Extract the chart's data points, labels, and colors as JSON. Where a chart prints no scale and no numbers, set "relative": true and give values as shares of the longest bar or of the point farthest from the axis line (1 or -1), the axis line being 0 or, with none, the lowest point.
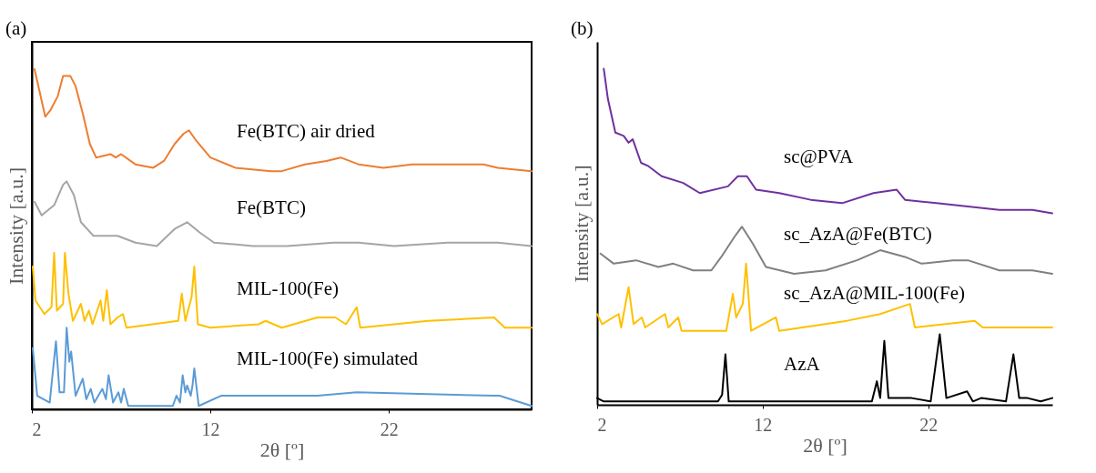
{
  "chart_data": [
    {
      "type": "line",
      "title": "(a)",
      "xlabel": "2θ [º]",
      "ylabel": "Intensity [a.u.]",
      "relative": true,
      "tick_labels": "x",
      "xlim": [
        2,
        30
      ],
      "xticks": [
        2,
        12,
        22
      ],
      "series": [
        {
          "name": "Fe(BTC) air dried",
          "color": "#ed7d31",
          "x": [
            2.15,
            2.75,
            3.05,
            3.45,
            3.75,
            4.15,
            4.45,
            4.85,
            5.25,
            5.6,
            6.4,
            6.7,
            7.0,
            7.8,
            8.8,
            9.4,
            10.0,
            10.5,
            10.8,
            11.2,
            12.0,
            13.4,
            15.4,
            16.0,
            17.3,
            18.5,
            19.3,
            20.3,
            21.7,
            23.3,
            25.3,
            27.3,
            28.1,
            30
          ],
          "values": [
            1.0,
            0.86,
            0.88,
            0.92,
            0.98,
            0.98,
            0.95,
            0.87,
            0.78,
            0.74,
            0.75,
            0.74,
            0.75,
            0.72,
            0.71,
            0.73,
            0.78,
            0.81,
            0.82,
            0.79,
            0.74,
            0.71,
            0.7,
            0.7,
            0.72,
            0.73,
            0.74,
            0.72,
            0.71,
            0.72,
            0.72,
            0.72,
            0.71,
            0.7
          ]
        },
        {
          "name": "Fe(BTC)",
          "color": "#a5a5a5",
          "x": [
            2.15,
            2.55,
            3.25,
            3.75,
            3.95,
            4.35,
            4.75,
            5.45,
            6.25,
            6.8,
            7.8,
            9.0,
            10.0,
            10.7,
            11.4,
            12.2,
            14.4,
            16.3,
            18.9,
            20.3,
            22.3,
            25.3,
            28.1,
            30
          ],
          "values": [
            0.61,
            0.57,
            0.6,
            0.66,
            0.67,
            0.63,
            0.55,
            0.51,
            0.51,
            0.51,
            0.49,
            0.48,
            0.53,
            0.55,
            0.52,
            0.49,
            0.48,
            0.48,
            0.49,
            0.49,
            0.48,
            0.49,
            0.49,
            0.48
          ]
        },
        {
          "name": "MIL-100(Fe)",
          "color": "#ffc000",
          "x": [
            2.05,
            2.2,
            2.7,
            3.1,
            3.25,
            3.4,
            3.75,
            3.85,
            4.05,
            4.3,
            4.75,
            4.95,
            5.2,
            5.4,
            5.85,
            6.0,
            6.2,
            6.4,
            6.8,
            7.1,
            7.3,
            10.2,
            10.4,
            10.6,
            10.95,
            11.1,
            11.3,
            12.0,
            14.7,
            15.1,
            16.0,
            18.0,
            19.0,
            19.6,
            20.2,
            20.4,
            24.2,
            27.9,
            28.5,
            30
          ],
          "values": [
            0.42,
            0.32,
            0.28,
            0.3,
            0.46,
            0.29,
            0.31,
            0.46,
            0.34,
            0.26,
            0.31,
            0.26,
            0.29,
            0.25,
            0.32,
            0.26,
            0.35,
            0.25,
            0.27,
            0.28,
            0.24,
            0.26,
            0.34,
            0.26,
            0.33,
            0.42,
            0.25,
            0.24,
            0.25,
            0.26,
            0.24,
            0.27,
            0.27,
            0.25,
            0.3,
            0.24,
            0.26,
            0.27,
            0.24,
            0.24
          ]
        },
        {
          "name": "MIL-100(Fe) simulated",
          "color": "#5b9bd5",
          "x": [
            2.05,
            2.3,
            3.0,
            3.35,
            3.55,
            3.8,
            3.95,
            4.1,
            4.2,
            4.45,
            4.85,
            5.05,
            5.3,
            5.5,
            5.95,
            6.15,
            6.3,
            6.55,
            6.85,
            7.0,
            7.15,
            7.4,
            9.9,
            10.1,
            10.3,
            10.45,
            10.6,
            10.7,
            10.9,
            11.0,
            11.1,
            11.35,
            12.6,
            13.7,
            14.3,
            18.0,
            20.2,
            27.9,
            28.2,
            30
          ],
          "values": [
            0.18,
            0.04,
            0.02,
            0.2,
            0.05,
            0.05,
            0.24,
            0.14,
            0.17,
            0.04,
            0.09,
            0.03,
            0.06,
            0.02,
            0.06,
            0.03,
            0.1,
            0.02,
            0.05,
            0.02,
            0.06,
            0.01,
            0.01,
            0.04,
            0.02,
            0.1,
            0.05,
            0.07,
            0.04,
            0.07,
            0.12,
            0.01,
            0.04,
            0.04,
            0.04,
            0.04,
            0.05,
            0.04,
            0.04,
            0.01
          ]
        }
      ]
    },
    {
      "type": "line",
      "title": "(b)",
      "xlabel": "2θ [º]",
      "ylabel": "Intensity [a.u.]",
      "relative": true,
      "tick_labels": "x",
      "xlim": [
        2,
        29.5
      ],
      "xticks": [
        2,
        12,
        22
      ],
      "series": [
        {
          "name": "sc@PVA",
          "color": "#7030a0",
          "x": [
            2.4,
            2.65,
            3.1,
            3.6,
            3.9,
            4.15,
            4.65,
            5.1,
            5.9,
            7.2,
            8.2,
            9.9,
            10.5,
            11.05,
            11.6,
            13.0,
            14.9,
            16.8,
            18.7,
            20.1,
            20.6,
            22.5,
            24.4,
            26.3,
            28.3,
            29.5
          ],
          "values": [
            1.0,
            0.91,
            0.81,
            0.8,
            0.78,
            0.79,
            0.72,
            0.71,
            0.68,
            0.66,
            0.63,
            0.65,
            0.68,
            0.68,
            0.64,
            0.63,
            0.61,
            0.6,
            0.63,
            0.64,
            0.61,
            0.6,
            0.59,
            0.58,
            0.58,
            0.57
          ]
        },
        {
          "name": "sc_AzA@Fe(BTC)",
          "color": "#808080",
          "x": [
            2.2,
            3.0,
            4.35,
            5.7,
            6.6,
            7.8,
            8.9,
            9.5,
            10.3,
            10.75,
            11.4,
            12.2,
            13.9,
            15.8,
            17.7,
            19.1,
            20.6,
            21.6,
            23.5,
            24.4,
            26.3,
            28.3,
            29.5
          ],
          "values": [
            0.45,
            0.42,
            0.43,
            0.41,
            0.42,
            0.4,
            0.4,
            0.44,
            0.5,
            0.53,
            0.48,
            0.41,
            0.39,
            0.4,
            0.43,
            0.46,
            0.44,
            0.42,
            0.43,
            0.43,
            0.4,
            0.4,
            0.39
          ]
        },
        {
          "name": "sc_AzA@MIL-100(Fe)",
          "color": "#ffc000",
          "x": [
            2.0,
            2.3,
            3.3,
            3.45,
            3.9,
            4.2,
            4.7,
            4.9,
            6.1,
            6.3,
            6.9,
            7.1,
            9.8,
            10.2,
            10.4,
            10.8,
            11.0,
            11.3,
            12.8,
            13.0,
            17.1,
            19.1,
            20.9,
            21.2,
            24.8,
            25.3,
            29.5
          ],
          "values": [
            0.27,
            0.24,
            0.27,
            0.23,
            0.35,
            0.24,
            0.26,
            0.23,
            0.27,
            0.23,
            0.26,
            0.22,
            0.22,
            0.33,
            0.26,
            0.3,
            0.42,
            0.22,
            0.26,
            0.22,
            0.25,
            0.27,
            0.3,
            0.23,
            0.25,
            0.23,
            0.23
          ]
        },
        {
          "name": "AzA",
          "color": "#000000",
          "x": [
            2.0,
            2.4,
            9.3,
            9.55,
            9.75,
            9.95,
            18.6,
            18.9,
            19.1,
            19.35,
            19.6,
            21.0,
            22.15,
            22.7,
            23.1,
            24.35,
            24.7,
            25.2,
            26.7,
            27.15,
            27.5,
            28.0,
            28.8,
            29.5
          ],
          "values": [
            0.02,
            0.01,
            0.01,
            0.03,
            0.15,
            0.01,
            0.01,
            0.07,
            0.02,
            0.19,
            0.02,
            0.02,
            0.01,
            0.21,
            0.02,
            0.04,
            0.01,
            0.02,
            0.01,
            0.15,
            0.02,
            0.02,
            0.01,
            0.02
          ]
        }
      ]
    }
  ]
}
